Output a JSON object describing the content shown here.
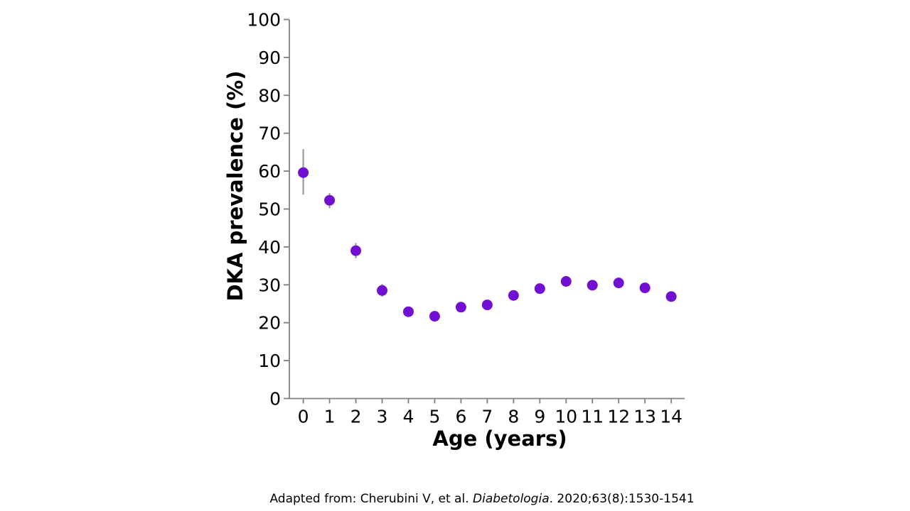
{
  "chart_data": {
    "type": "scatter",
    "title": "",
    "xlabel": "Age (years)",
    "ylabel": "DKA prevalence (%)",
    "x": [
      0,
      1,
      2,
      3,
      4,
      5,
      6,
      7,
      8,
      9,
      10,
      11,
      12,
      13,
      14
    ],
    "series": [
      {
        "name": "DKA prevalence",
        "values": [
          59.6,
          52.3,
          39.0,
          28.5,
          22.9,
          21.7,
          24.1,
          24.7,
          27.2,
          29.0,
          30.9,
          29.9,
          30.5,
          29.2,
          26.9
        ],
        "ci_low": [
          53.8,
          50.2,
          37.0,
          26.9,
          null,
          null,
          null,
          null,
          null,
          null,
          null,
          null,
          null,
          null,
          null
        ],
        "ci_high": [
          65.8,
          54.2,
          41.0,
          30.2,
          null,
          null,
          null,
          null,
          null,
          null,
          null,
          null,
          null,
          null,
          null
        ]
      }
    ],
    "xlim": [
      -0.53,
      14.51
    ],
    "ylim": [
      0,
      100
    ],
    "xticks": [
      0,
      1,
      2,
      3,
      4,
      5,
      6,
      7,
      8,
      9,
      10,
      11,
      12,
      13,
      14
    ],
    "yticks": [
      0,
      10,
      20,
      30,
      40,
      50,
      60,
      70,
      80,
      90,
      100
    ],
    "grid": false,
    "legend": "none",
    "marker_color": "#7110D2",
    "error_bar_color": "#999999",
    "axis_color": "#808080",
    "text_color": "#000000"
  },
  "citation": {
    "prefix": "Adapted from: Cherubini V, et al. ",
    "journal": "Diabetologia",
    "suffix": ". 2020;63(8):1530-1541"
  }
}
